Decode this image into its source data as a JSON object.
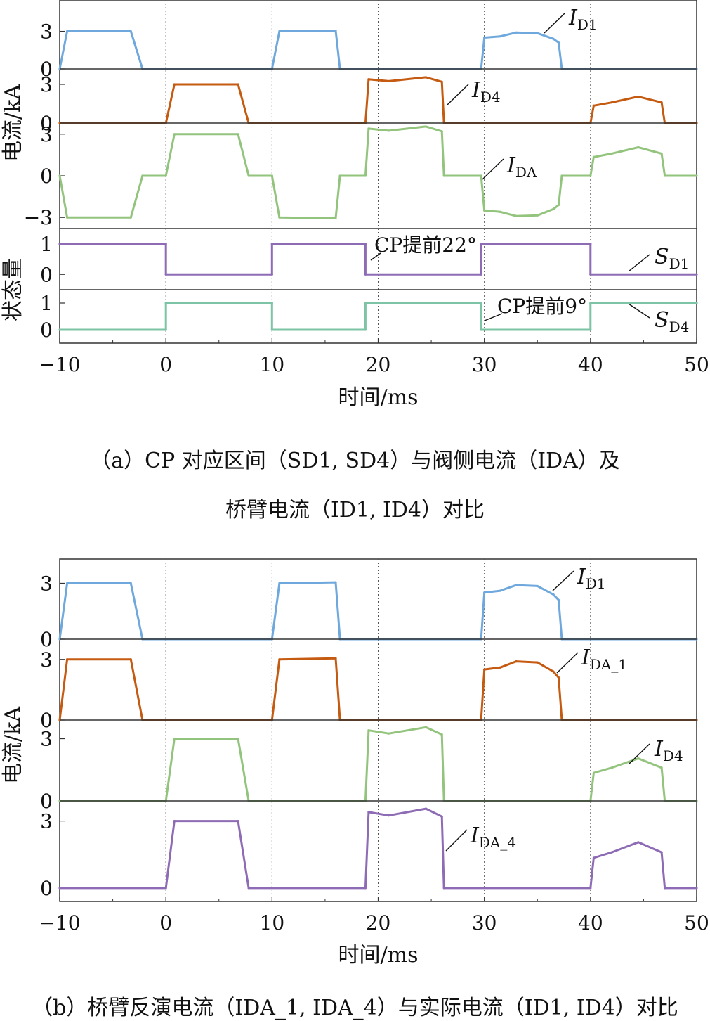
{
  "chart_data": [
    {
      "type": "line",
      "caption_line1": "（a）CP 对应区间（SD1, SD4）与阀侧电流（IDA）及",
      "caption_line2": "桥臂电流（ID1, ID4）对比",
      "xlabel": "时间/ms",
      "xlim": [
        -10,
        50
      ],
      "xticks": [
        "−10",
        "0",
        "10",
        "20",
        "30",
        "40",
        "50"
      ],
      "ylabel_current": "电流/kA",
      "ylabel_state": "状态量",
      "colors": {
        "ID1": "#6fa8dc",
        "ID4": "#c55a11",
        "IDA": "#93c47d",
        "SD1": "#8e6bb5",
        "SD4": "#7cc4a5"
      },
      "panels": [
        {
          "series": "ID1",
          "ylim": [
            0,
            5.5
          ],
          "yticks": [
            "0",
            "3"
          ],
          "label": "I",
          "label_sub": "D1",
          "x": [
            -10,
            -9.3,
            -3.3,
            -2.2,
            10,
            10.7,
            16,
            16.4,
            29.7,
            30,
            31.5,
            33,
            35,
            36.5,
            37,
            37.3,
            50
          ],
          "y": [
            0,
            3,
            3,
            0,
            0,
            3,
            3.05,
            0,
            0,
            2.5,
            2.6,
            2.9,
            2.85,
            2.4,
            2.1,
            0,
            0
          ]
        },
        {
          "series": "ID4",
          "ylim": [
            0,
            4.2
          ],
          "yticks": [
            "0",
            "3"
          ],
          "label": "I",
          "label_sub": "D4",
          "x": [
            -10,
            0,
            0.8,
            6.8,
            7.8,
            18.8,
            19.1,
            21,
            24.5,
            26,
            26.2,
            40,
            40.3,
            42,
            44.5,
            46.7,
            47,
            50
          ],
          "y": [
            0,
            0,
            3,
            3,
            0,
            0,
            3.4,
            3.25,
            3.55,
            3.2,
            0,
            0,
            1.35,
            1.6,
            2.05,
            1.6,
            0,
            0
          ]
        },
        {
          "series": "IDA",
          "ylim": [
            -3.8,
            3.8
          ],
          "yticks": [
            "−3",
            "0",
            "3"
          ],
          "label": "I",
          "label_sub": "DA",
          "x": [
            -10,
            -9.3,
            -3.3,
            -2.2,
            0,
            0.8,
            6.8,
            7.8,
            10,
            10.7,
            16,
            16.4,
            18.8,
            19.1,
            21,
            24.5,
            26,
            26.2,
            29.7,
            30,
            31.5,
            33,
            35,
            36.5,
            37,
            37.3,
            40,
            40.3,
            42,
            44.5,
            46.7,
            47,
            50
          ],
          "y": [
            0,
            -3,
            -3,
            0,
            0,
            3,
            3,
            0,
            0,
            -3,
            -3.05,
            0,
            0,
            3.4,
            3.25,
            3.55,
            3.2,
            0,
            0,
            -2.5,
            -2.6,
            -2.9,
            -2.85,
            -2.4,
            -2.1,
            0,
            0,
            1.35,
            1.6,
            2.05,
            1.6,
            0,
            0
          ]
        },
        {
          "series": "SD1",
          "ylim": [
            -0.5,
            1.5
          ],
          "yticks": [
            "0",
            "1"
          ],
          "label": "S",
          "label_sub": "D1",
          "annotation": "CP提前22°",
          "x": [
            -10,
            0,
            0,
            10,
            10,
            18.8,
            18.8,
            29.7,
            29.7,
            40,
            40,
            50
          ],
          "y": [
            1,
            1,
            0,
            0,
            1,
            1,
            0,
            0,
            1,
            1,
            0,
            0
          ]
        },
        {
          "series": "SD4",
          "ylim": [
            -0.5,
            1.5
          ],
          "yticks": [
            "0",
            "1"
          ],
          "label": "S",
          "label_sub": "D4",
          "annotation": "CP提前9°",
          "x": [
            -10,
            0,
            0,
            10,
            10,
            18.8,
            18.8,
            29.7,
            29.7,
            40,
            40,
            50
          ],
          "y": [
            0,
            0,
            1,
            1,
            0,
            0,
            1,
            1,
            0,
            0,
            1,
            1
          ]
        }
      ]
    },
    {
      "type": "line",
      "caption": "（b）桥臂反演电流（IDA_1, IDA_4）与实际电流（ID1, ID4）对比",
      "xlabel": "时间/ms",
      "xlim": [
        -10,
        50
      ],
      "xticks": [
        "−10",
        "0",
        "10",
        "20",
        "30",
        "40",
        "50"
      ],
      "ylabel_current": "电流/kA",
      "colors": {
        "ID1": "#6fa8dc",
        "IDA_1": "#c55a11",
        "ID4": "#93c47d",
        "IDA_4": "#8e6bb5"
      },
      "panels": [
        {
          "series": "ID1",
          "ylim": [
            0,
            4.3
          ],
          "yticks": [
            "0",
            "3"
          ],
          "label": "I",
          "label_sub": "D1",
          "x": [
            -10,
            -9.3,
            -3.3,
            -2.2,
            10,
            10.7,
            16,
            16.4,
            29.7,
            30,
            31.5,
            33,
            35,
            36.5,
            37,
            37.3,
            50
          ],
          "y": [
            0,
            3,
            3,
            0,
            0,
            3,
            3.05,
            0,
            0,
            2.5,
            2.6,
            2.9,
            2.85,
            2.4,
            2.1,
            0,
            0
          ]
        },
        {
          "series": "IDA_1",
          "ylim": [
            0,
            4.0
          ],
          "yticks": [
            "0",
            "3"
          ],
          "label": "I",
          "label_sub": "DA_1",
          "x": [
            -10,
            -9.3,
            -3.3,
            -2.2,
            10,
            10.7,
            16,
            16.4,
            29.7,
            30,
            31.5,
            33,
            35,
            36.5,
            37,
            37.3,
            50
          ],
          "y": [
            0,
            3,
            3,
            0,
            0,
            3,
            3.05,
            0,
            0,
            2.5,
            2.6,
            2.9,
            2.85,
            2.4,
            2.1,
            0,
            0
          ]
        },
        {
          "series": "ID4",
          "ylim": [
            0,
            3.9
          ],
          "yticks": [
            "0",
            "3"
          ],
          "label": "I",
          "label_sub": "D4",
          "x": [
            -10,
            0,
            0.8,
            6.8,
            7.8,
            18.8,
            19.1,
            21,
            24.5,
            26,
            26.2,
            40,
            40.3,
            42,
            44.5,
            46.7,
            47,
            50
          ],
          "y": [
            0,
            0,
            3,
            3,
            0,
            0,
            3.4,
            3.25,
            3.55,
            3.2,
            0,
            0,
            1.35,
            1.6,
            2.05,
            1.6,
            0,
            0
          ]
        },
        {
          "series": "IDA_4",
          "ylim": [
            -0.6,
            3.9
          ],
          "yticks": [
            "0",
            "3"
          ],
          "label": "I",
          "label_sub": "DA_4",
          "x": [
            -10,
            0,
            0.8,
            6.8,
            7.8,
            18.8,
            19.1,
            21,
            24.5,
            26,
            26.2,
            40,
            40.3,
            42,
            44.5,
            46.7,
            47,
            50
          ],
          "y": [
            0,
            0,
            3,
            3,
            0,
            0,
            3.4,
            3.25,
            3.55,
            3.2,
            0,
            0,
            1.35,
            1.6,
            2.05,
            1.6,
            0,
            0
          ]
        }
      ]
    }
  ]
}
